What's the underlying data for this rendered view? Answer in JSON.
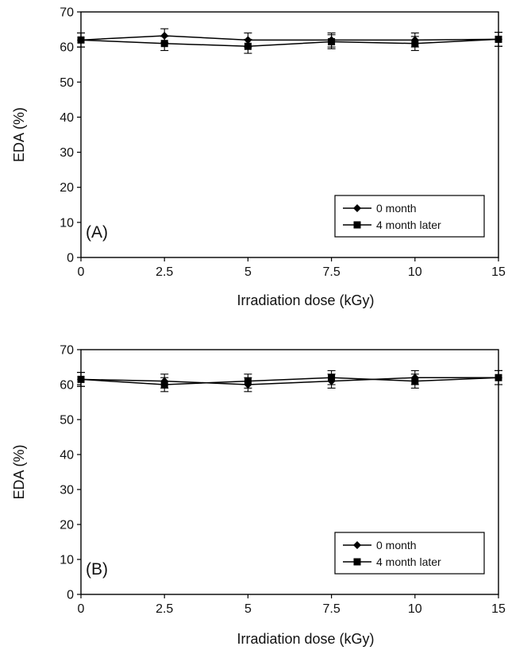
{
  "chart_data": [
    {
      "type": "line",
      "panel_label": "(A)",
      "xlabel": "Irradiation dose (kGy)",
      "ylabel": "EDA (%)",
      "categories": [
        "0",
        "2.5",
        "5",
        "7.5",
        "10",
        "15"
      ],
      "yticks": [
        "0",
        "10",
        "20",
        "30",
        "40",
        "50",
        "60",
        "70"
      ],
      "ylim": [
        0,
        70
      ],
      "legend_position": "bottom-right",
      "grid": false,
      "series": [
        {
          "name": "0 month",
          "marker": "diamond",
          "values": [
            62,
            63.2,
            62,
            62,
            62,
            62.2
          ],
          "errors": [
            2,
            2,
            2,
            2,
            2,
            2
          ]
        },
        {
          "name": "4 month later",
          "marker": "square",
          "values": [
            62,
            61,
            60.2,
            61.5,
            61,
            62.2
          ],
          "errors": [
            2,
            2,
            2,
            2,
            2,
            2
          ]
        }
      ]
    },
    {
      "type": "line",
      "panel_label": "(B)",
      "xlabel": "Irradiation dose (kGy)",
      "ylabel": "EDA (%)",
      "categories": [
        "0",
        "2.5",
        "5",
        "7.5",
        "10",
        "15"
      ],
      "yticks": [
        "0",
        "10",
        "20",
        "30",
        "40",
        "50",
        "60",
        "70"
      ],
      "ylim": [
        0,
        70
      ],
      "legend_position": "bottom-right",
      "grid": false,
      "series": [
        {
          "name": "0 month",
          "marker": "diamond",
          "values": [
            61.5,
            61,
            60,
            61,
            62,
            62
          ],
          "errors": [
            2,
            2,
            2,
            2,
            2,
            2
          ]
        },
        {
          "name": "4 month later",
          "marker": "square",
          "values": [
            61.5,
            60,
            61,
            62,
            61,
            62
          ],
          "errors": [
            2,
            2,
            2,
            2,
            2,
            2
          ]
        }
      ]
    }
  ]
}
